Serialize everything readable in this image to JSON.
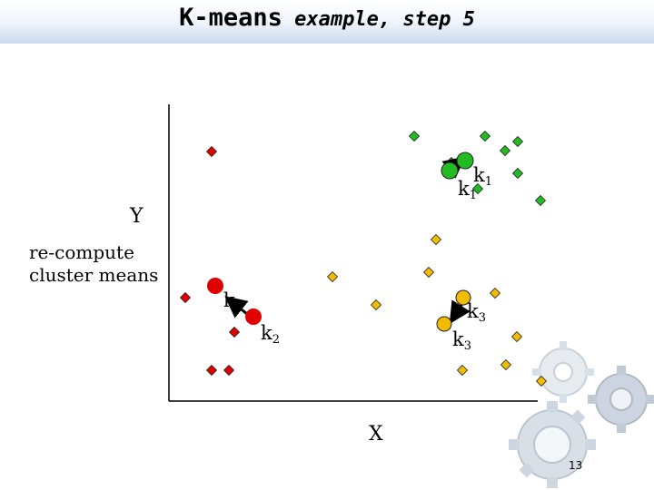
{
  "title": {
    "main": "K-means",
    "rest": " example, step 5"
  },
  "axes": {
    "x_label": "X",
    "y_label": "Y"
  },
  "caption": [
    "re-compute",
    "cluster means"
  ],
  "page_number": "13",
  "colors": {
    "red": "#e00000",
    "green": "#22bb22",
    "yellow": "#f0bb00",
    "outline": "#222222"
  },
  "centroid_labels": {
    "k1": {
      "base": "k",
      "sub": "1"
    },
    "k2": {
      "base": "k",
      "sub": "2"
    },
    "k3": {
      "base": "k",
      "sub": "3"
    }
  },
  "decoration": "gear-watermark"
}
